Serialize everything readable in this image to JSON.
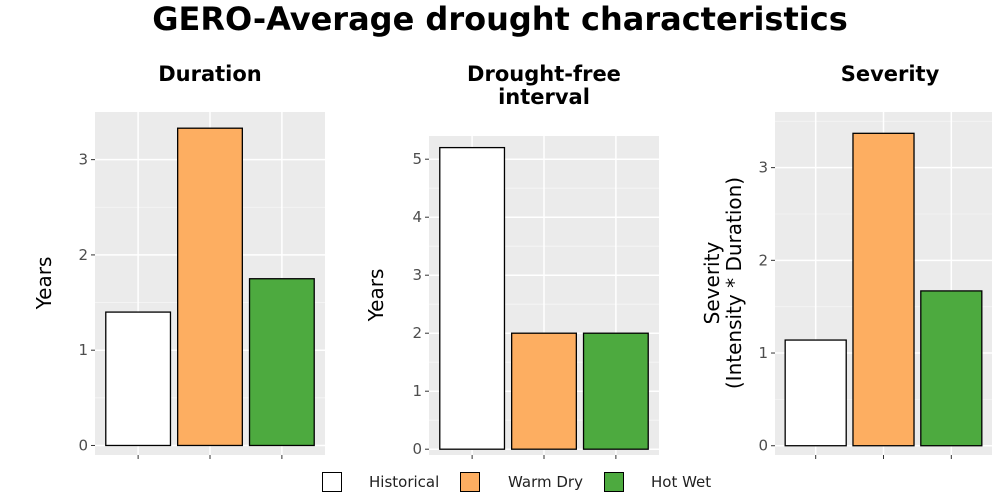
{
  "title": "GERO-Average drought characteristics",
  "legend": [
    {
      "label": "Historical",
      "color": "#ffffff"
    },
    {
      "label": "Warm Dry",
      "color": "#fdae61"
    },
    {
      "label": "Hot Wet",
      "color": "#4daa3f"
    }
  ],
  "chart_data": [
    {
      "type": "bar",
      "title": "Duration",
      "ylabel": "Years",
      "categories": [
        "Historical",
        "Warm Dry",
        "Hot Wet"
      ],
      "values": [
        1.4,
        3.33,
        1.75
      ],
      "ylim": [
        -0.1,
        3.5
      ],
      "yticks": [
        "0",
        "1",
        "2",
        "3"
      ],
      "grid": true
    },
    {
      "type": "bar",
      "title": "Drought-free\ninterval",
      "ylabel": "Years",
      "categories": [
        "Historical",
        "Warm Dry",
        "Hot Wet"
      ],
      "values": [
        5.2,
        2.0,
        2.0
      ],
      "ylim": [
        -0.1,
        5.4
      ],
      "yticks": [
        "0",
        "1",
        "2",
        "3",
        "4",
        "5"
      ],
      "grid": true
    },
    {
      "type": "bar",
      "title": "Severity",
      "ylabel": "Severity\n(Intensity * Duration)",
      "categories": [
        "Historical",
        "Warm Dry",
        "Hot Wet"
      ],
      "values": [
        1.14,
        3.37,
        1.67
      ],
      "ylim": [
        -0.1,
        3.6
      ],
      "yticks": [
        "0",
        "1",
        "2",
        "3"
      ],
      "grid": true
    }
  ]
}
